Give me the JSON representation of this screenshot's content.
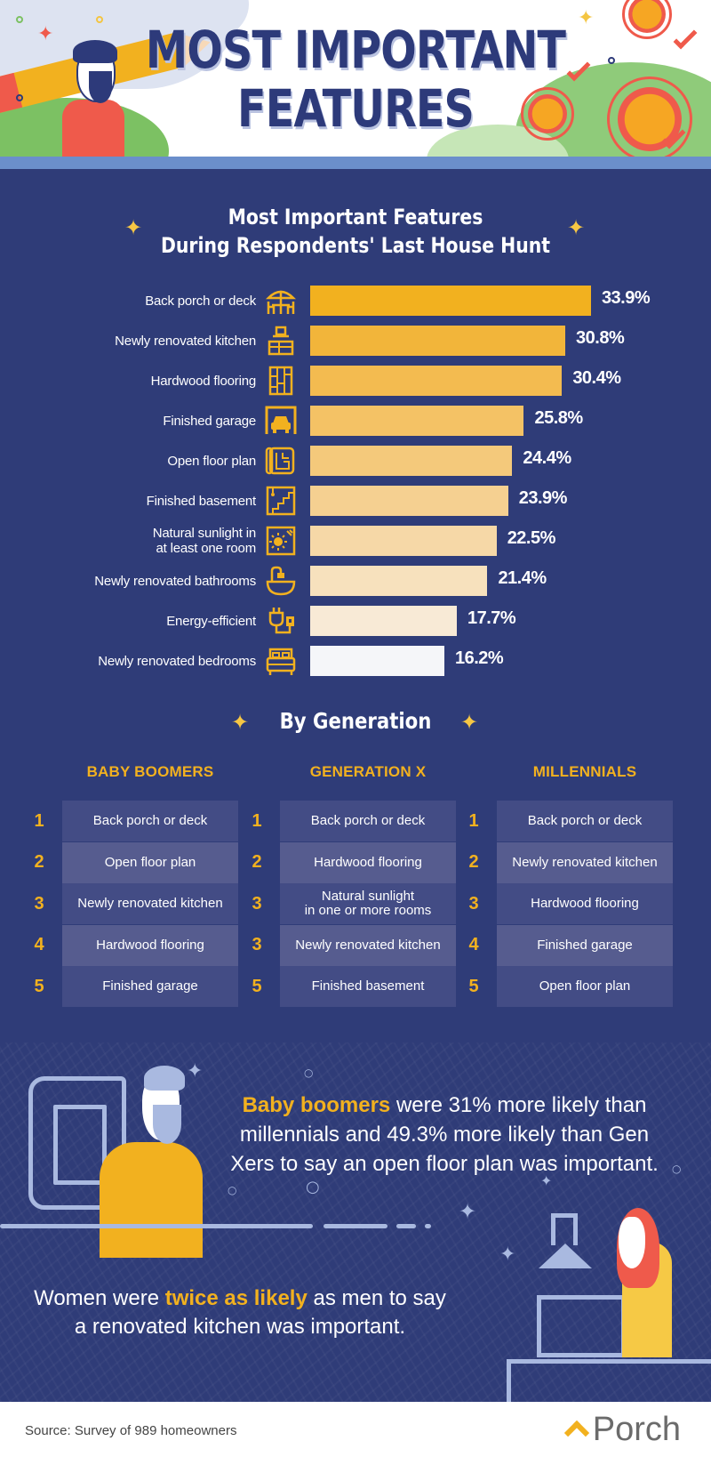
{
  "header": {
    "title_line1": "MOST IMPORTANT",
    "title_line2": "FEATURES"
  },
  "chart_data": {
    "type": "bar",
    "orientation": "horizontal",
    "title": "Most Important Features During Respondents' Last House Hunt",
    "title_line1": "Most Important Features",
    "title_line2": "During Respondents' Last House Hunt",
    "xlabel": "",
    "ylabel": "",
    "unit": "%",
    "xlim": [
      0,
      40
    ],
    "grid": false,
    "categories": [
      "Back porch or deck",
      "Newly renovated kitchen",
      "Hardwood flooring",
      "Finished garage",
      "Open floor plan",
      "Finished basement",
      "Natural sunlight in at least one room",
      "Newly renovated bathrooms",
      "Energy-efficient",
      "Newly renovated bedrooms"
    ],
    "values": [
      33.9,
      30.8,
      30.4,
      25.8,
      24.4,
      23.9,
      22.5,
      21.4,
      17.7,
      16.2
    ],
    "value_labels": [
      "33.9%",
      "30.8%",
      "30.4%",
      "25.8%",
      "24.4%",
      "23.9%",
      "22.5%",
      "21.4%",
      "17.7%",
      "16.2%"
    ],
    "label_lines": [
      [
        "Back porch or deck"
      ],
      [
        "Newly renovated kitchen"
      ],
      [
        "Hardwood flooring"
      ],
      [
        "Finished garage"
      ],
      [
        "Open floor plan"
      ],
      [
        "Finished basement"
      ],
      [
        "Natural sunlight in",
        "at least one room"
      ],
      [
        "Newly renovated bathrooms"
      ],
      [
        "Energy-efficient"
      ],
      [
        "Newly renovated bedrooms"
      ]
    ],
    "icons": [
      "patio-umbrella-icon",
      "kitchen-icon",
      "hardwood-floor-icon",
      "garage-car-icon",
      "floor-plan-icon",
      "basement-stairs-icon",
      "sunlight-window-icon",
      "bathtub-icon",
      "energy-plug-icon",
      "bed-icon"
    ],
    "bar_colors": [
      "#f2b11f",
      "#f2b53a",
      "#f3bb50",
      "#f4c265",
      "#f4c97b",
      "#f5d091",
      "#f6d8a7",
      "#f7e1bd",
      "#f8ead6",
      "#f5f6f9"
    ]
  },
  "by_generation": {
    "title": "By Generation",
    "columns": [
      {
        "name": "BABY BOOMERS",
        "rows": [
          {
            "rank": "1",
            "lines": [
              "Back porch or deck"
            ]
          },
          {
            "rank": "2",
            "lines": [
              "Open floor plan"
            ]
          },
          {
            "rank": "3",
            "lines": [
              "Newly renovated kitchen"
            ]
          },
          {
            "rank": "4",
            "lines": [
              "Hardwood flooring"
            ]
          },
          {
            "rank": "5",
            "lines": [
              "Finished garage"
            ]
          }
        ]
      },
      {
        "name": "GENERATION X",
        "rows": [
          {
            "rank": "1",
            "lines": [
              "Back porch or deck"
            ]
          },
          {
            "rank": "2",
            "lines": [
              "Hardwood flooring"
            ]
          },
          {
            "rank": "3",
            "lines": [
              "Natural sunlight",
              "in one or more rooms"
            ]
          },
          {
            "rank": "3",
            "lines": [
              "Newly renovated kitchen"
            ]
          },
          {
            "rank": "5",
            "lines": [
              "Finished basement"
            ]
          }
        ]
      },
      {
        "name": "MILLENNIALS",
        "rows": [
          {
            "rank": "1",
            "lines": [
              "Back porch or deck"
            ]
          },
          {
            "rank": "2",
            "lines": [
              "Newly renovated kitchen"
            ]
          },
          {
            "rank": "3",
            "lines": [
              "Hardwood flooring"
            ]
          },
          {
            "rank": "4",
            "lines": [
              "Finished garage"
            ]
          },
          {
            "rank": "5",
            "lines": [
              "Open floor plan"
            ]
          }
        ]
      }
    ]
  },
  "facts": {
    "fact1": {
      "highlight": "Baby boomers",
      "rest": " were 31% more likely than millennials and 49.3% more likely than Gen Xers to say an open floor plan was important."
    },
    "fact2": {
      "before": "Women were ",
      "highlight": "twice as likely",
      "after": " as men to say a renovated kitchen was important."
    }
  },
  "footer": {
    "source": "Source: Survey of 989 homeowners",
    "logo_text": "Porch"
  },
  "colors": {
    "background": "#2f3c78",
    "accent": "#f2b11f",
    "header_band": "#6b8fcb",
    "title": "#2d3a7a",
    "illustration_red": "#ef5a4b"
  }
}
